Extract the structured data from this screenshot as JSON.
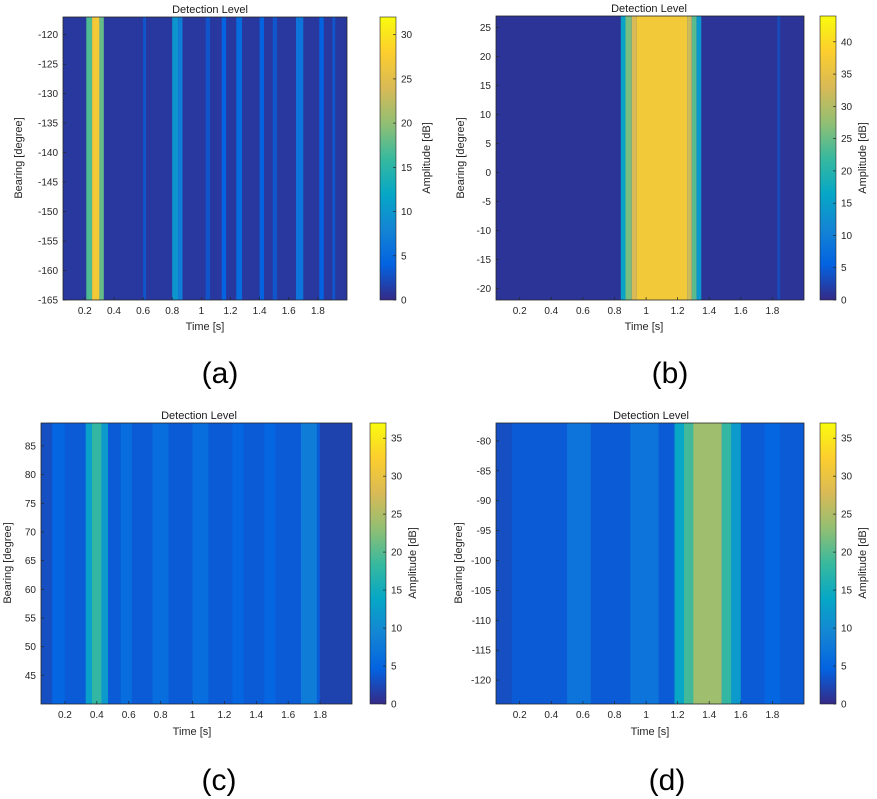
{
  "chart_data": [
    {
      "type": "heatmap",
      "panel_label": "(a)",
      "title": "Detection Level",
      "xlabel": "Time [s]",
      "ylabel": "Bearing [degree]",
      "colorbar_label": "Amplitude [dB]",
      "xlim": [
        0.05,
        2.0
      ],
      "ylim": [
        -165,
        -117
      ],
      "xticks": [
        "0.2",
        "0.4",
        "0.6",
        "0.8",
        "1",
        "1.2",
        "1.4",
        "1.6",
        "1.8"
      ],
      "yticks": [
        "-120",
        "-125",
        "-130",
        "-135",
        "-140",
        "-145",
        "-150",
        "-155",
        "-160",
        "-165"
      ],
      "colorbar_ticks": [
        "0",
        "5",
        "10",
        "15",
        "20",
        "25",
        "30"
      ],
      "clim": [
        0,
        32
      ],
      "background_level": 1,
      "columns": [
        {
          "x0": 0.21,
          "x1": 0.25,
          "level": 17
        },
        {
          "x0": 0.25,
          "x1": 0.3,
          "level": 27
        },
        {
          "x0": 0.3,
          "x1": 0.33,
          "level": 18
        },
        {
          "x0": 0.8,
          "x1": 0.84,
          "level": 10
        },
        {
          "x0": 0.84,
          "x1": 0.87,
          "level": 7
        },
        {
          "x0": 0.6,
          "x1": 0.62,
          "level": 3
        },
        {
          "x0": 1.03,
          "x1": 1.06,
          "level": 3
        },
        {
          "x0": 1.14,
          "x1": 1.17,
          "level": 4
        },
        {
          "x0": 1.24,
          "x1": 1.28,
          "level": 5
        },
        {
          "x0": 1.4,
          "x1": 1.43,
          "level": 4
        },
        {
          "x0": 1.49,
          "x1": 1.52,
          "level": 3
        },
        {
          "x0": 1.65,
          "x1": 1.7,
          "level": 6
        },
        {
          "x0": 1.81,
          "x1": 1.84,
          "level": 4
        },
        {
          "x0": 1.9,
          "x1": 1.92,
          "level": 3
        }
      ]
    },
    {
      "type": "heatmap",
      "panel_label": "(b)",
      "title": "Detection Level",
      "xlabel": "Time [s]",
      "ylabel": "Bearing [degree]",
      "colorbar_label": "Amplitude [dB]",
      "xlim": [
        0.05,
        2.0
      ],
      "ylim": [
        -22,
        27
      ],
      "xticks": [
        "0.2",
        "0.4",
        "0.6",
        "0.8",
        "1",
        "1.2",
        "1.4",
        "1.6",
        "1.8"
      ],
      "yticks": [
        "25",
        "20",
        "15",
        "10",
        "5",
        "0",
        "-5",
        "-10",
        "-15",
        "-20"
      ],
      "colorbar_ticks": [
        "0",
        "5",
        "10",
        "15",
        "20",
        "25",
        "30",
        "35",
        "40"
      ],
      "clim": [
        0,
        44
      ],
      "background_level": 1,
      "columns": [
        {
          "x0": 0.84,
          "x1": 0.87,
          "level": 16
        },
        {
          "x0": 0.87,
          "x1": 0.91,
          "level": 26
        },
        {
          "x0": 0.91,
          "x1": 0.94,
          "level": 33
        },
        {
          "x0": 0.94,
          "x1": 1.26,
          "level": 37
        },
        {
          "x0": 1.26,
          "x1": 1.29,
          "level": 32
        },
        {
          "x0": 1.29,
          "x1": 1.32,
          "level": 24
        },
        {
          "x0": 1.32,
          "x1": 1.35,
          "level": 14
        },
        {
          "x0": 1.83,
          "x1": 1.85,
          "level": 3
        }
      ]
    },
    {
      "type": "heatmap",
      "panel_label": "(c)",
      "title": "Detection Level",
      "xlabel": "Time [s]",
      "ylabel": "Bearing [degree]",
      "colorbar_label": "Amplitude [dB]",
      "xlim": [
        0.05,
        2.0
      ],
      "ylim": [
        40,
        89
      ],
      "xticks": [
        "0.2",
        "0.4",
        "0.6",
        "0.8",
        "1",
        "1.2",
        "1.4",
        "1.6",
        "1.8"
      ],
      "yticks": [
        "85",
        "80",
        "75",
        "70",
        "65",
        "60",
        "55",
        "50",
        "45"
      ],
      "colorbar_ticks": [
        "0",
        "5",
        "10",
        "15",
        "20",
        "25",
        "30",
        "35"
      ],
      "clim": [
        0,
        37
      ],
      "background_level": 4,
      "columns": [
        {
          "x0": 0.05,
          "x1": 0.12,
          "level": 3
        },
        {
          "x0": 0.12,
          "x1": 0.2,
          "level": 5
        },
        {
          "x0": 0.2,
          "x1": 0.3,
          "level": 4
        },
        {
          "x0": 0.33,
          "x1": 0.37,
          "level": 13
        },
        {
          "x0": 0.37,
          "x1": 0.43,
          "level": 18
        },
        {
          "x0": 0.43,
          "x1": 0.47,
          "level": 12
        },
        {
          "x0": 0.55,
          "x1": 0.62,
          "level": 6
        },
        {
          "x0": 0.75,
          "x1": 0.85,
          "level": 6
        },
        {
          "x0": 1.0,
          "x1": 1.1,
          "level": 6
        },
        {
          "x0": 1.25,
          "x1": 1.32,
          "level": 5
        },
        {
          "x0": 1.45,
          "x1": 1.52,
          "level": 5
        },
        {
          "x0": 1.68,
          "x1": 1.78,
          "level": 8
        },
        {
          "x0": 1.8,
          "x1": 2.0,
          "level": 2
        }
      ]
    },
    {
      "type": "heatmap",
      "panel_label": "(d)",
      "title": "Detection Level",
      "xlabel": "Time [s]",
      "ylabel": "Bearing [degree]",
      "colorbar_label": "Amplitude [dB]",
      "xlim": [
        0.05,
        2.0
      ],
      "ylim": [
        -124,
        -77
      ],
      "xticks": [
        "0.2",
        "0.4",
        "0.6",
        "0.8",
        "1",
        "1.2",
        "1.4",
        "1.6",
        "1.8"
      ],
      "yticks": [
        "-80",
        "-85",
        "-90",
        "-95",
        "-100",
        "-105",
        "-110",
        "-115",
        "-120"
      ],
      "colorbar_ticks": [
        "0",
        "5",
        "10",
        "15",
        "20",
        "25",
        "30",
        "35"
      ],
      "clim": [
        0,
        37
      ],
      "background_level": 4,
      "columns": [
        {
          "x0": 0.05,
          "x1": 0.15,
          "level": 3
        },
        {
          "x0": 0.5,
          "x1": 0.65,
          "level": 7
        },
        {
          "x0": 0.9,
          "x1": 1.08,
          "level": 7
        },
        {
          "x0": 1.18,
          "x1": 1.24,
          "level": 14
        },
        {
          "x0": 1.24,
          "x1": 1.3,
          "level": 19
        },
        {
          "x0": 1.3,
          "x1": 1.48,
          "level": 24
        },
        {
          "x0": 1.48,
          "x1": 1.54,
          "level": 18
        },
        {
          "x0": 1.54,
          "x1": 1.6,
          "level": 12
        },
        {
          "x0": 1.75,
          "x1": 1.85,
          "level": 5
        }
      ]
    }
  ]
}
